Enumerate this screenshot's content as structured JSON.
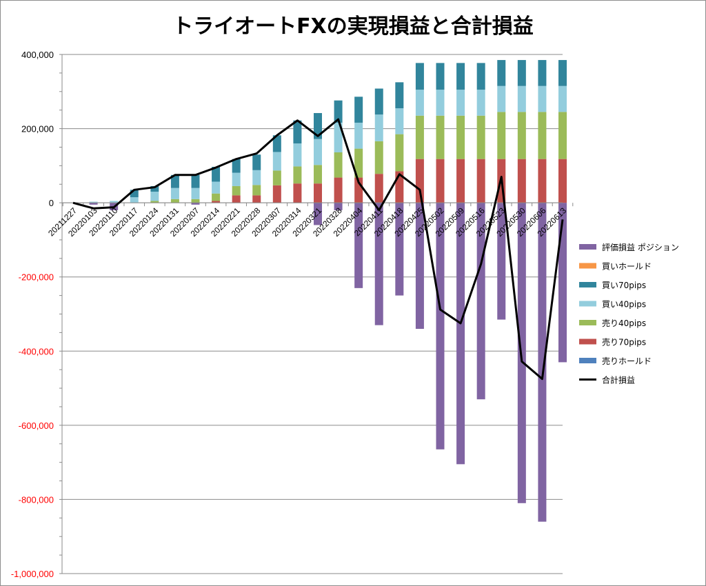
{
  "chart_data": {
    "type": "bar",
    "title": "トライオートFXの実現損益と合計損益",
    "stacked": true,
    "ylim": [
      -1000000,
      400000
    ],
    "y_ticks": [
      400000,
      200000,
      0,
      -200000,
      -400000,
      -600000,
      -800000,
      -1000000
    ],
    "y_tick_labels": [
      "400,000",
      "200,000",
      "0",
      "-200,000",
      "-400,000",
      "-600,000",
      "-800,000",
      "-1,000,000"
    ],
    "negative_tick_color": "#ff0000",
    "grid": "horizontal",
    "legend_position": "right",
    "categories": [
      "20211227",
      "20220103",
      "20220110",
      "20220117",
      "20220124",
      "20220131",
      "20220207",
      "20220214",
      "20220221",
      "20220228",
      "20220307",
      "20220314",
      "20220321",
      "20220328",
      "20220404",
      "20220411",
      "20220418",
      "20220425",
      "20220502",
      "20220509",
      "20220516",
      "20220523",
      "20220530",
      "20220606",
      "20220613"
    ],
    "series": [
      {
        "name": "評価損益 ポジション",
        "kind": "bar",
        "color": "#8064a2",
        "values": [
          0,
          -5000,
          -20000,
          0,
          0,
          0,
          -5000,
          0,
          0,
          0,
          0,
          0,
          -60000,
          -20000,
          -230000,
          -330000,
          -250000,
          -340000,
          -665000,
          -705000,
          -530000,
          -315000,
          -810000,
          -860000,
          -430000
        ]
      },
      {
        "name": "買いホールド",
        "kind": "bar",
        "color": "#f79646",
        "values": [
          0,
          0,
          0,
          0,
          0,
          0,
          0,
          0,
          0,
          0,
          0,
          0,
          0,
          0,
          0,
          0,
          0,
          0,
          0,
          0,
          0,
          0,
          0,
          0,
          0
        ]
      },
      {
        "name": "売りホールド",
        "kind": "bar",
        "color": "#4f81bd",
        "values": [
          0,
          0,
          0,
          0,
          0,
          0,
          0,
          0,
          0,
          0,
          0,
          0,
          0,
          0,
          0,
          0,
          0,
          0,
          0,
          0,
          0,
          0,
          0,
          0,
          0
        ]
      },
      {
        "name": "売り70pips",
        "kind": "bar",
        "color": "#c0504d",
        "values": [
          0,
          0,
          0,
          0,
          0,
          0,
          0,
          5000,
          20000,
          20000,
          47000,
          52000,
          52000,
          68000,
          68000,
          78000,
          85000,
          118000,
          118000,
          118000,
          118000,
          118000,
          118000,
          118000,
          118000
        ]
      },
      {
        "name": "売り40pips",
        "kind": "bar",
        "color": "#9bbb59",
        "values": [
          0,
          0,
          0,
          0,
          5000,
          10000,
          10000,
          20000,
          25000,
          28000,
          40000,
          46000,
          50000,
          68000,
          78000,
          88000,
          100000,
          117000,
          117000,
          117000,
          117000,
          127000,
          127000,
          127000,
          127000
        ]
      },
      {
        "name": "買い40pips",
        "kind": "bar",
        "color": "#93cddd",
        "values": [
          0,
          3000,
          5000,
          15000,
          25000,
          30000,
          30000,
          32000,
          36000,
          40000,
          50000,
          62000,
          70000,
          80000,
          70000,
          72000,
          70000,
          70000,
          70000,
          70000,
          70000,
          70000,
          70000,
          70000,
          70000
        ]
      },
      {
        "name": "買い70pips",
        "kind": "bar",
        "color": "#31859c",
        "values": [
          0,
          0,
          0,
          20000,
          15000,
          35000,
          35000,
          40000,
          37000,
          42000,
          45000,
          62000,
          70000,
          60000,
          70000,
          70000,
          70000,
          72000,
          72000,
          72000,
          72000,
          70000,
          70000,
          70000,
          70000
        ]
      },
      {
        "name": "合計損益",
        "kind": "line",
        "color": "#000000",
        "values": [
          0,
          -15000,
          -12000,
          35000,
          42000,
          75000,
          75000,
          95000,
          118000,
          133000,
          182000,
          222000,
          180000,
          225000,
          55000,
          -20000,
          77000,
          35000,
          -288000,
          -325000,
          -165000,
          70000,
          -428000,
          -475000,
          -45000
        ]
      }
    ],
    "legend_order": [
      "評価損益 ポジション",
      "買いホールド",
      "買い70pips",
      "買い40pips",
      "売り40pips",
      "売り70pips",
      "売りホールド",
      "合計損益"
    ]
  }
}
